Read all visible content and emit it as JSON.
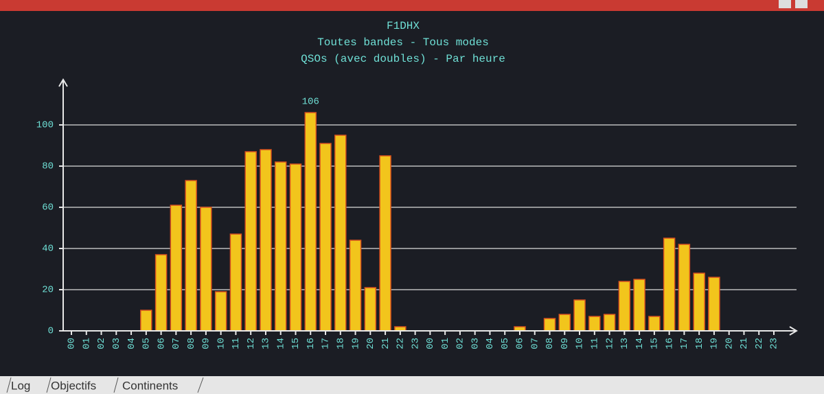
{
  "chart_data": {
    "type": "bar",
    "title": "F1DHX",
    "subtitle": [
      "Toutes bandes - Tous modes",
      "QSOs (avec doubles) - Par heure"
    ],
    "categories": [
      "00",
      "01",
      "02",
      "03",
      "04",
      "05",
      "06",
      "07",
      "08",
      "09",
      "10",
      "11",
      "12",
      "13",
      "14",
      "15",
      "16",
      "17",
      "18",
      "19",
      "20",
      "21",
      "22",
      "23",
      "00",
      "01",
      "02",
      "03",
      "04",
      "05",
      "06",
      "07",
      "08",
      "09",
      "10",
      "11",
      "12",
      "13",
      "14",
      "15",
      "16",
      "17",
      "18",
      "19",
      "20",
      "21",
      "22",
      "23"
    ],
    "values": [
      0,
      0,
      0,
      0,
      0,
      10,
      37,
      61,
      73,
      60,
      19,
      47,
      87,
      88,
      82,
      81,
      106,
      91,
      95,
      44,
      21,
      85,
      2,
      0,
      0,
      0,
      0,
      0,
      0,
      0,
      2,
      0,
      6,
      8,
      15,
      7,
      8,
      24,
      25,
      7,
      45,
      42,
      28,
      26,
      0,
      0,
      0,
      0
    ],
    "color": "#f2c51c",
    "edge_color": "#d8501f",
    "ylim": [
      0,
      118
    ],
    "yticks": [
      0,
      20,
      40,
      60,
      80,
      100
    ],
    "grid": true,
    "label_max": true
  },
  "tabs": [
    "Log",
    "Objectifs",
    "Continents"
  ]
}
